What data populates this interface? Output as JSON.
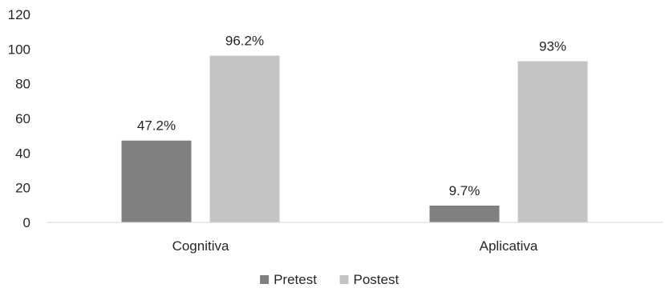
{
  "chart_data": {
    "type": "bar",
    "categories": [
      "Cognitiva",
      "Aplicativa"
    ],
    "series": [
      {
        "name": "Pretest",
        "values": [
          47.2,
          9.7
        ],
        "labels": [
          "47.2%",
          "9.7%"
        ],
        "color": "#808080"
      },
      {
        "name": "Postest",
        "values": [
          96.2,
          93
        ],
        "labels": [
          "96.2%",
          "93%"
        ],
        "color": "#c4c4c4"
      }
    ],
    "ylim": [
      0,
      120
    ],
    "yticks": [
      "0",
      "20",
      "40",
      "60",
      "80",
      "100",
      "120"
    ],
    "title": "",
    "xlabel": "",
    "ylabel": "",
    "grid": false,
    "legend_position": "bottom"
  }
}
